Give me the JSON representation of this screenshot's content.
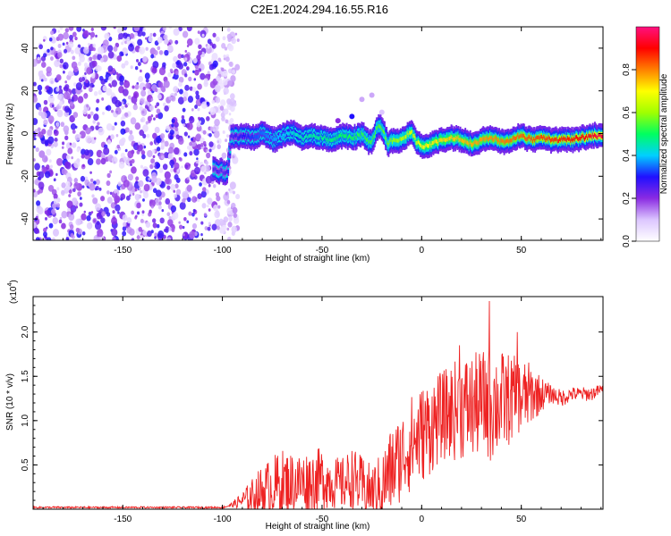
{
  "title": "C2E1.2024.294.16.55.R16",
  "chart_data": [
    {
      "type": "heatmap",
      "xlabel": "Height of straight line (km)",
      "ylabel": "Frequency (Hz)",
      "xlim": [
        -195,
        91
      ],
      "ylim": [
        -50,
        50
      ],
      "xticks": [
        -150,
        -100,
        -50,
        0,
        50
      ],
      "yticks": [
        -40,
        -20,
        0,
        20,
        40
      ],
      "xtick_labels": [
        "-150",
        "-100",
        "-50",
        "0",
        "50"
      ],
      "ytick_labels": [
        "-40",
        "-20",
        "0",
        "20",
        "40"
      ],
      "colorbar": {
        "label": "Normalized spectral amplitude",
        "range": [
          0,
          1
        ],
        "ticks": [
          0.0,
          0.2,
          0.4,
          0.6,
          0.8
        ],
        "tick_labels": [
          "0.0",
          "0.2",
          "0.4",
          "0.6",
          "0.8"
        ],
        "colormap": [
          "#ffffff",
          "#dcc6ff",
          "#8a2be2",
          "#2010ff",
          "#00d0ff",
          "#00ff60",
          "#a0ff00",
          "#ffff00",
          "#ff8000",
          "#ff0000",
          "#ff1080"
        ]
      },
      "noise_region": {
        "x_range": [
          -195,
          -98
        ],
        "description_amplitude": [
          0.05,
          0.25
        ]
      },
      "track": {
        "x": [
          -105,
          -98,
          -96,
          -90,
          -85,
          -80,
          -75,
          -70,
          -65,
          -60,
          -55,
          -50,
          -45,
          -40,
          -35,
          -30,
          -27,
          -25,
          -22,
          -20,
          -17,
          -15,
          -12,
          -8,
          -5,
          -3,
          0,
          5,
          10,
          15,
          20,
          25,
          30,
          35,
          40,
          45,
          50,
          55,
          60,
          65,
          70,
          75,
          80,
          85,
          90
        ],
        "y": [
          -17,
          -18,
          -2,
          -1,
          -2,
          0,
          -3,
          -1,
          1,
          -2,
          -1,
          -2,
          -3,
          -1,
          -2,
          0,
          -4,
          -3,
          4,
          2,
          -5,
          -3,
          -4,
          -1,
          1,
          -4,
          -6,
          -5,
          -3,
          -2,
          -3,
          -5,
          -3,
          -2,
          -4,
          -3,
          -1,
          -3,
          -2,
          -3,
          -3,
          -3,
          -2,
          -1,
          -1
        ],
        "amplitude_x": [
          -98,
          -80,
          -60,
          -40,
          -20,
          0,
          20,
          40,
          60,
          80,
          90
        ],
        "amplitude": [
          0.25,
          0.35,
          0.45,
          0.5,
          0.55,
          0.7,
          0.75,
          0.8,
          0.85,
          0.9,
          0.95
        ]
      }
    },
    {
      "type": "line",
      "xlabel": "Height of straight line (km)",
      "ylabel": "SNR (10 * v/v)",
      "scale_label": "(x10",
      "scale_exponent": "4",
      "xlim": [
        -195,
        91
      ],
      "ylim": [
        0,
        2.4
      ],
      "xticks": [
        -150,
        -100,
        -50,
        0,
        50
      ],
      "yticks": [
        0.5,
        1.0,
        1.5,
        2.0
      ],
      "xtick_labels": [
        "-150",
        "-100",
        "-50",
        "0",
        "50"
      ],
      "ytick_labels": [
        "0.5",
        "1.0",
        "1.5",
        "2.0"
      ],
      "series": [
        {
          "color": "#ee2222",
          "envelope_x": [
            -195,
            -100,
            -95,
            -90,
            -85,
            -80,
            -75,
            -70,
            -65,
            -60,
            -55,
            -50,
            -45,
            -40,
            -35,
            -30,
            -25,
            -20,
            -15,
            -10,
            -5,
            0,
            5,
            10,
            15,
            20,
            25,
            30,
            35,
            40,
            45,
            50,
            55,
            60,
            65,
            70,
            75,
            80,
            85,
            90
          ],
          "envelope_mean": [
            0.02,
            0.02,
            0.05,
            0.1,
            0.15,
            0.2,
            0.25,
            0.28,
            0.3,
            0.3,
            0.32,
            0.35,
            0.3,
            0.28,
            0.35,
            0.25,
            0.2,
            0.25,
            0.45,
            0.6,
            0.75,
            0.85,
            0.95,
            1.05,
            1.1,
            1.15,
            1.15,
            1.2,
            1.2,
            1.2,
            1.25,
            1.25,
            1.3,
            1.3,
            1.3,
            1.25,
            1.3,
            1.3,
            1.3,
            1.35
          ],
          "envelope_spread": [
            0.01,
            0.01,
            0.03,
            0.1,
            0.2,
            0.3,
            0.35,
            0.4,
            0.35,
            0.35,
            0.35,
            0.35,
            0.3,
            0.3,
            0.35,
            0.35,
            0.3,
            0.4,
            0.5,
            0.5,
            0.55,
            0.55,
            0.55,
            0.5,
            0.55,
            0.6,
            0.6,
            0.6,
            0.65,
            0.6,
            0.5,
            0.45,
            0.35,
            0.2,
            0.1,
            0.1,
            0.08,
            0.08,
            0.08,
            0.06
          ],
          "peaks": [
            {
              "x": 34,
              "y": 2.35
            },
            {
              "x": 34.5,
              "y": 0.55
            },
            {
              "x": 48,
              "y": 2.0
            },
            {
              "x": 19,
              "y": 1.85
            }
          ]
        }
      ]
    }
  ]
}
